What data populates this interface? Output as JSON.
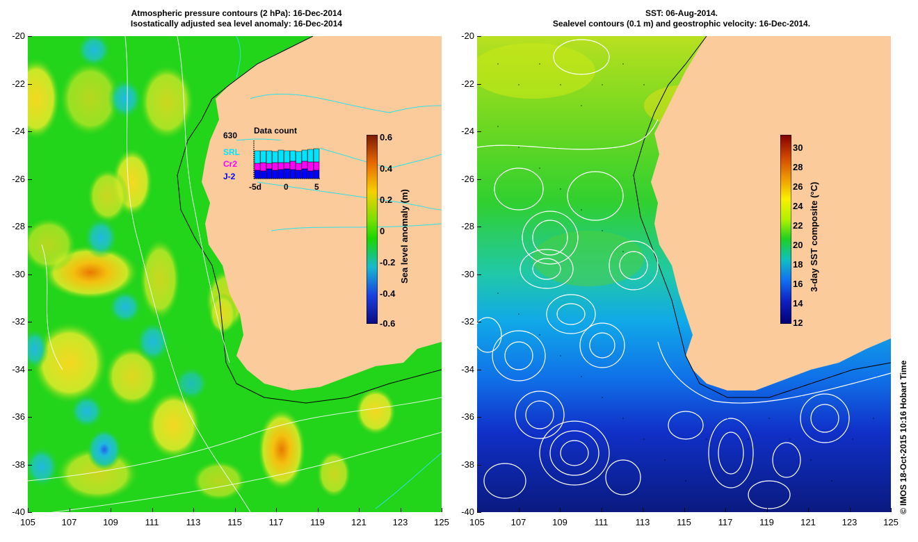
{
  "left_panel": {
    "title_line1": "Atmospheric pressure contours (2 hPa): 16-Dec-2014",
    "title_line2": "Isostatically adjusted sea level anomaly: 16-Dec-2014",
    "colorbar": {
      "label": "Sea level anomaly (m)",
      "ticks": [
        "0.6",
        "0.4",
        "0.2",
        "0",
        "-0.2",
        "-0.4",
        "-0.6"
      ],
      "colors": [
        "#7a1a00",
        "#e86a00",
        "#f6d000",
        "#19d600",
        "#19b8d0",
        "#1a40e0",
        "#0a0a80"
      ]
    },
    "inset": {
      "title": "Data count",
      "max_label": "630",
      "legend": [
        {
          "name": "SRL",
          "color": "#00e5ff"
        },
        {
          "name": "Cr2",
          "color": "#ff00ff"
        },
        {
          "name": "J-2",
          "color": "#0000ff"
        }
      ],
      "x_ticks": [
        "-5d",
        "0",
        "5"
      ]
    }
  },
  "right_panel": {
    "title_line1": "SST: 06-Aug-2014.",
    "title_line2": "Sealevel contours (0.1 m) and geostrophic velocity: 16-Dec-2014.",
    "colorbar": {
      "label": "3-day SST composite (°C)",
      "ticks": [
        "30",
        "28",
        "26",
        "24",
        "22",
        "20",
        "18",
        "16",
        "14",
        "12"
      ],
      "colors": [
        "#800000",
        "#d04800",
        "#f0a000",
        "#f8f000",
        "#b0f000",
        "#20d020",
        "#10c0c0",
        "#1070f0",
        "#1020c0",
        "#000070"
      ]
    }
  },
  "axes": {
    "y_ticks": [
      "-20",
      "-22",
      "-24",
      "-26",
      "-28",
      "-30",
      "-32",
      "-34",
      "-36",
      "-38",
      "-40"
    ],
    "x_ticks": [
      "105",
      "107",
      "109",
      "111",
      "113",
      "115",
      "117",
      "119",
      "121",
      "123",
      "125"
    ]
  },
  "colors": {
    "land": "#fbcb9b",
    "ocean_left": "#22d41a",
    "contour_white": "#ffffff",
    "contour_cyan": "#30e0e8"
  },
  "credit": "© IMOS 18-Oct-2015 10:16 Hobart Time"
}
